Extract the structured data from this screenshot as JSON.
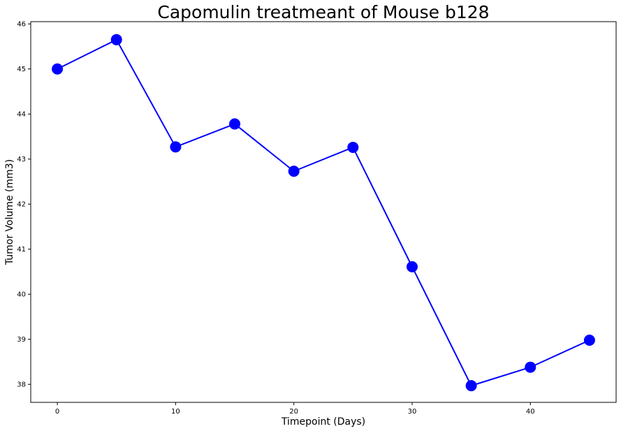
{
  "chart_data": {
    "type": "line",
    "title": "Capomulin treatmeant of Mouse b128",
    "xlabel": "Timepoint (Days)",
    "ylabel": "Tumor Volume (mm3)",
    "x": [
      0,
      5,
      10,
      15,
      20,
      25,
      30,
      35,
      40,
      45
    ],
    "series": [
      {
        "values": [
          45.0,
          45.65,
          43.27,
          43.78,
          42.73,
          43.26,
          40.61,
          37.97,
          38.38,
          38.98
        ],
        "color": "#0000ff",
        "marker": "circle"
      }
    ],
    "xlim": [
      -2.25,
      47.25
    ],
    "ylim": [
      37.6,
      46.05
    ],
    "xticks": [
      0,
      10,
      20,
      30,
      40
    ],
    "yticks": [
      38,
      39,
      40,
      41,
      42,
      43,
      44,
      45,
      46
    ],
    "grid": false,
    "legend": false
  }
}
